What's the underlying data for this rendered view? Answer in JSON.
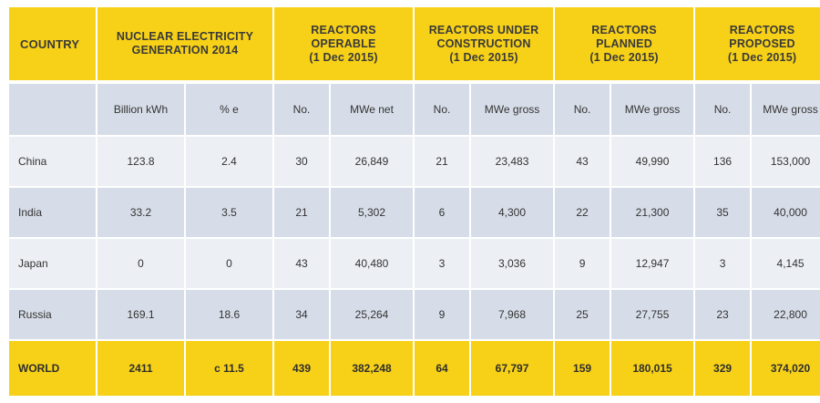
{
  "headers": {
    "country": "COUNTRY",
    "generation": [
      "NUCLEAR ELECTRICITY",
      "GENERATION 2014"
    ],
    "operable": [
      "REACTORS",
      "OPERABLE",
      "(1 Dec 2015)"
    ],
    "construction": [
      "REACTORS UNDER",
      "CONSTRUCTION",
      "(1 Dec 2015)"
    ],
    "planned": [
      "REACTORS",
      "PLANNED",
      "(1 Dec 2015)"
    ],
    "proposed": [
      "REACTORS",
      "PROPOSED",
      "(1 Dec 2015)"
    ]
  },
  "units": [
    "",
    "Billion kWh",
    "% e",
    "No.",
    "MWe net",
    "No.",
    "MWe gross",
    "No.",
    "MWe gross",
    "No.",
    "MWe gross"
  ],
  "rows": [
    [
      "China",
      "123.8",
      "2.4",
      "30",
      "26,849",
      "21",
      "23,483",
      "43",
      "49,990",
      "136",
      "153,000"
    ],
    [
      "India",
      "33.2",
      "3.5",
      "21",
      "5,302",
      "6",
      "4,300",
      "22",
      "21,300",
      "35",
      "40,000"
    ],
    [
      "Japan",
      "0",
      "0",
      "43",
      "40,480",
      "3",
      "3,036",
      "9",
      "12,947",
      "3",
      "4,145"
    ],
    [
      "Russia",
      "169.1",
      "18.6",
      "34",
      "25,264",
      "9",
      "7,968",
      "25",
      "27,755",
      "23",
      "22,800"
    ]
  ],
  "world": [
    "WORLD",
    "2411",
    "c 11.5",
    "439",
    "382,248",
    "64",
    "67,797",
    "159",
    "180,015",
    "329",
    "374,020"
  ]
}
